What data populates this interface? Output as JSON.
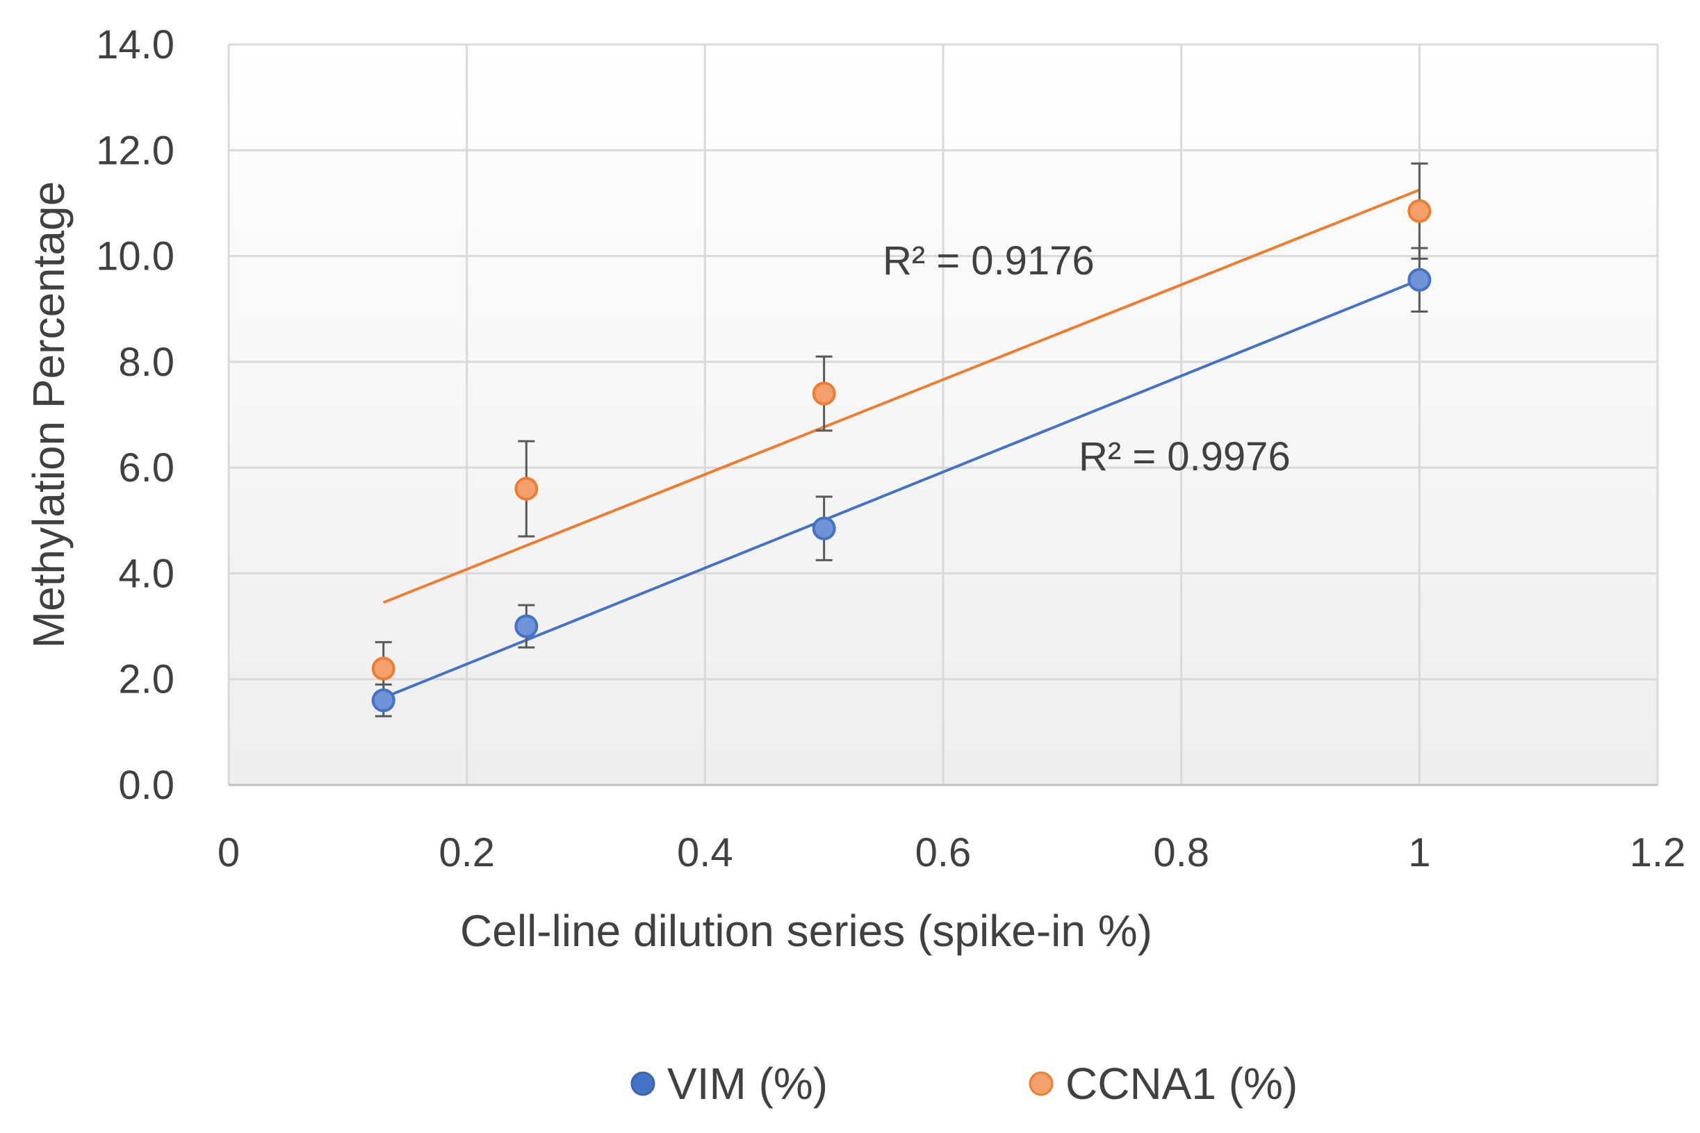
{
  "chart_data": {
    "type": "scatter",
    "title": "",
    "xlabel": "Cell-line dilution series (spike-in %)",
    "ylabel": "Methylation Percentage",
    "xlim": [
      0,
      1.2
    ],
    "ylim": [
      0,
      14
    ],
    "x_ticks": [
      "0",
      "0.2",
      "0.4",
      "0.6",
      "0.8",
      "1",
      "1.2"
    ],
    "y_ticks": [
      "0.0",
      "2.0",
      "4.0",
      "6.0",
      "8.0",
      "10.0",
      "12.0",
      "14.0"
    ],
    "grid": true,
    "legend_position": "bottom",
    "colors": {
      "VIM": "#4472c4",
      "CCNA1": "#ed7d31",
      "gridline": "#d9d9d9",
      "errorbar": "#595959"
    },
    "series": [
      {
        "name": "VIM (%)",
        "key": "VIM",
        "x": [
          0.13,
          0.25,
          0.5,
          1.0
        ],
        "y": [
          1.6,
          3.0,
          4.85,
          9.55
        ],
        "error": [
          0.3,
          0.4,
          0.6,
          0.6
        ],
        "trendline": {
          "x": [
            0.13,
            1.0
          ],
          "y": [
            1.65,
            9.55
          ]
        },
        "r2_text": "R² = 0.9976"
      },
      {
        "name": "CCNA1 (%)",
        "key": "CCNA1",
        "x": [
          0.13,
          0.25,
          0.5,
          1.0
        ],
        "y": [
          2.2,
          5.6,
          7.4,
          10.85
        ],
        "error": [
          0.5,
          0.9,
          0.7,
          0.9
        ],
        "trendline": {
          "x": [
            0.13,
            1.0
          ],
          "y": [
            3.45,
            11.25
          ]
        },
        "r2_text": "R² = 0.9176"
      }
    ]
  }
}
